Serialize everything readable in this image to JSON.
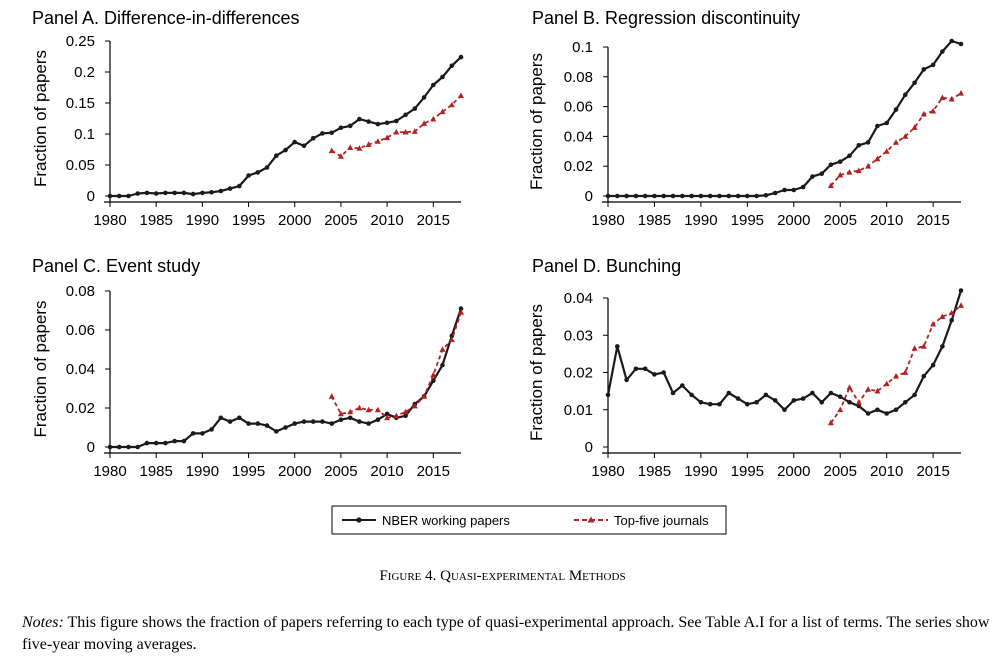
{
  "chart_data": [
    {
      "type": "line",
      "title": "Panel A. Difference-in-differences",
      "xlabel": "",
      "ylabel": "Fraction of papers",
      "xlim": [
        1980,
        2018
      ],
      "ylim": [
        0,
        0.25
      ],
      "xticks": [
        "1980",
        "1985",
        "1990",
        "1995",
        "2000",
        "2005",
        "2010",
        "2015"
      ],
      "yticks": [
        "0",
        "0.05",
        "0.1",
        "0.15",
        "0.2",
        "0.25"
      ],
      "series": [
        {
          "name": "NBER working papers",
          "x": [
            1980,
            1981,
            1982,
            1983,
            1984,
            1985,
            1986,
            1987,
            1988,
            1989,
            1990,
            1991,
            1992,
            1993,
            1994,
            1995,
            1996,
            1997,
            1998,
            1999,
            2000,
            2001,
            2002,
            2003,
            2004,
            2005,
            2006,
            2007,
            2008,
            2009,
            2010,
            2011,
            2012,
            2013,
            2014,
            2015,
            2016,
            2017,
            2018
          ],
          "y": [
            0.0,
            0.0,
            0.0,
            0.004,
            0.005,
            0.004,
            0.005,
            0.005,
            0.005,
            0.003,
            0.005,
            0.006,
            0.008,
            0.012,
            0.016,
            0.033,
            0.038,
            0.046,
            0.065,
            0.074,
            0.087,
            0.081,
            0.093,
            0.101,
            0.102,
            0.11,
            0.113,
            0.124,
            0.12,
            0.116,
            0.118,
            0.121,
            0.131,
            0.141,
            0.159,
            0.179,
            0.192,
            0.21,
            0.224
          ]
        },
        {
          "name": "Top-five journals",
          "x": [
            2004,
            2005,
            2006,
            2007,
            2008,
            2009,
            2010,
            2011,
            2012,
            2013,
            2014,
            2015,
            2016,
            2017,
            2018
          ],
          "y": [
            0.073,
            0.064,
            0.078,
            0.077,
            0.083,
            0.088,
            0.094,
            0.103,
            0.103,
            0.104,
            0.117,
            0.124,
            0.136,
            0.147,
            0.162
          ]
        }
      ]
    },
    {
      "type": "line",
      "title": "Panel B. Regression discontinuity",
      "xlabel": "",
      "ylabel": "Fraction of papers",
      "xlim": [
        1980,
        2018
      ],
      "ylim": [
        0,
        0.1
      ],
      "xticks": [
        "1980",
        "1985",
        "1990",
        "1995",
        "2000",
        "2005",
        "2010",
        "2015"
      ],
      "yticks": [
        "0",
        "0.02",
        "0.04",
        "0.06",
        "0.08",
        "0.1"
      ],
      "series": [
        {
          "name": "NBER working papers",
          "x": [
            1980,
            1981,
            1982,
            1983,
            1984,
            1985,
            1986,
            1987,
            1988,
            1989,
            1990,
            1991,
            1992,
            1993,
            1994,
            1995,
            1996,
            1997,
            1998,
            1999,
            2000,
            2001,
            2002,
            2003,
            2004,
            2005,
            2006,
            2007,
            2008,
            2009,
            2010,
            2011,
            2012,
            2013,
            2014,
            2015,
            2016,
            2017,
            2018
          ],
          "y": [
            0,
            0,
            0,
            0,
            0,
            0,
            0,
            0,
            0,
            0,
            0,
            0,
            0,
            0,
            0,
            0,
            0,
            0.0005,
            0.002,
            0.004,
            0.004,
            0.006,
            0.013,
            0.015,
            0.021,
            0.023,
            0.027,
            0.034,
            0.036,
            0.047,
            0.049,
            0.058,
            0.068,
            0.076,
            0.085,
            0.088,
            0.097,
            0.104,
            0.102
          ]
        },
        {
          "name": "Top-five journals",
          "x": [
            2004,
            2005,
            2006,
            2007,
            2008,
            2009,
            2010,
            2011,
            2012,
            2013,
            2014,
            2015,
            2016,
            2017,
            2018
          ],
          "y": [
            0.007,
            0.014,
            0.016,
            0.017,
            0.02,
            0.025,
            0.03,
            0.036,
            0.04,
            0.046,
            0.055,
            0.057,
            0.066,
            0.065,
            0.069
          ]
        }
      ]
    },
    {
      "type": "line",
      "title": "Panel C. Event study",
      "xlabel": "",
      "ylabel": "Fraction of papers",
      "xlim": [
        1980,
        2018
      ],
      "ylim": [
        0,
        0.08
      ],
      "xticks": [
        "1980",
        "1985",
        "1990",
        "1995",
        "2000",
        "2005",
        "2010",
        "2015"
      ],
      "yticks": [
        "0",
        "0.02",
        "0.04",
        "0.06",
        "0.08"
      ],
      "series": [
        {
          "name": "NBER working papers",
          "x": [
            1980,
            1981,
            1982,
            1983,
            1984,
            1985,
            1986,
            1987,
            1988,
            1989,
            1990,
            1991,
            1992,
            1993,
            1994,
            1995,
            1996,
            1997,
            1998,
            1999,
            2000,
            2001,
            2002,
            2003,
            2004,
            2005,
            2006,
            2007,
            2008,
            2009,
            2010,
            2011,
            2012,
            2013,
            2014,
            2015,
            2016,
            2017,
            2018
          ],
          "y": [
            0,
            0,
            0,
            0,
            0.002,
            0.002,
            0.002,
            0.003,
            0.003,
            0.007,
            0.007,
            0.009,
            0.015,
            0.013,
            0.015,
            0.012,
            0.012,
            0.011,
            0.008,
            0.01,
            0.012,
            0.013,
            0.013,
            0.013,
            0.012,
            0.014,
            0.015,
            0.013,
            0.012,
            0.014,
            0.017,
            0.015,
            0.016,
            0.022,
            0.026,
            0.034,
            0.042,
            0.057,
            0.071
          ]
        },
        {
          "name": "Top-five journals",
          "x": [
            2004,
            2005,
            2006,
            2007,
            2008,
            2009,
            2010,
            2011,
            2012,
            2013,
            2014,
            2015,
            2016,
            2017,
            2018
          ],
          "y": [
            0.026,
            0.017,
            0.018,
            0.02,
            0.019,
            0.019,
            0.015,
            0.016,
            0.018,
            0.021,
            0.026,
            0.037,
            0.05,
            0.055,
            0.069
          ]
        }
      ]
    },
    {
      "type": "line",
      "title": "Panel D. Bunching",
      "xlabel": "",
      "ylabel": "Fraction of papers",
      "xlim": [
        1980,
        2018
      ],
      "ylim": [
        0,
        0.04
      ],
      "xticks": [
        "1980",
        "1985",
        "1990",
        "1995",
        "2000",
        "2005",
        "2010",
        "2015"
      ],
      "yticks": [
        "0",
        "0.01",
        "0.02",
        "0.03",
        "0.04"
      ],
      "series": [
        {
          "name": "NBER working papers",
          "x": [
            1980,
            1981,
            1982,
            1983,
            1984,
            1985,
            1986,
            1987,
            1988,
            1989,
            1990,
            1991,
            1992,
            1993,
            1994,
            1995,
            1996,
            1997,
            1998,
            1999,
            2000,
            2001,
            2002,
            2003,
            2004,
            2005,
            2006,
            2007,
            2008,
            2009,
            2010,
            2011,
            2012,
            2013,
            2014,
            2015,
            2016,
            2017,
            2018
          ],
          "y": [
            0.014,
            0.027,
            0.018,
            0.021,
            0.021,
            0.0195,
            0.02,
            0.0145,
            0.0165,
            0.014,
            0.012,
            0.0115,
            0.0115,
            0.0145,
            0.013,
            0.0115,
            0.012,
            0.014,
            0.0125,
            0.01,
            0.0125,
            0.013,
            0.0145,
            0.012,
            0.0145,
            0.0135,
            0.012,
            0.011,
            0.009,
            0.01,
            0.009,
            0.01,
            0.012,
            0.014,
            0.019,
            0.022,
            0.027,
            0.034,
            0.042
          ]
        },
        {
          "name": "Top-five journals",
          "x": [
            2004,
            2005,
            2006,
            2007,
            2008,
            2009,
            2010,
            2011,
            2012,
            2013,
            2014,
            2015,
            2016,
            2017,
            2018
          ],
          "y": [
            0.0065,
            0.01,
            0.016,
            0.012,
            0.0155,
            0.015,
            0.017,
            0.019,
            0.02,
            0.0265,
            0.027,
            0.033,
            0.035,
            0.036,
            0.038
          ]
        }
      ]
    }
  ],
  "legend": {
    "items": [
      "NBER working papers",
      "Top-five journals"
    ]
  },
  "colors": {
    "nber": "#1a1a1a",
    "top5": "#b22222"
  },
  "caption": {
    "prefix": "Figure 4.",
    "title": "Quasi-experimental Methods"
  },
  "notes": {
    "label": "Notes:",
    "text": " This figure shows the fraction of papers referring to each type of quasi-experimental approach. See Table A.I for a list of terms. The series show five-year moving averages."
  }
}
